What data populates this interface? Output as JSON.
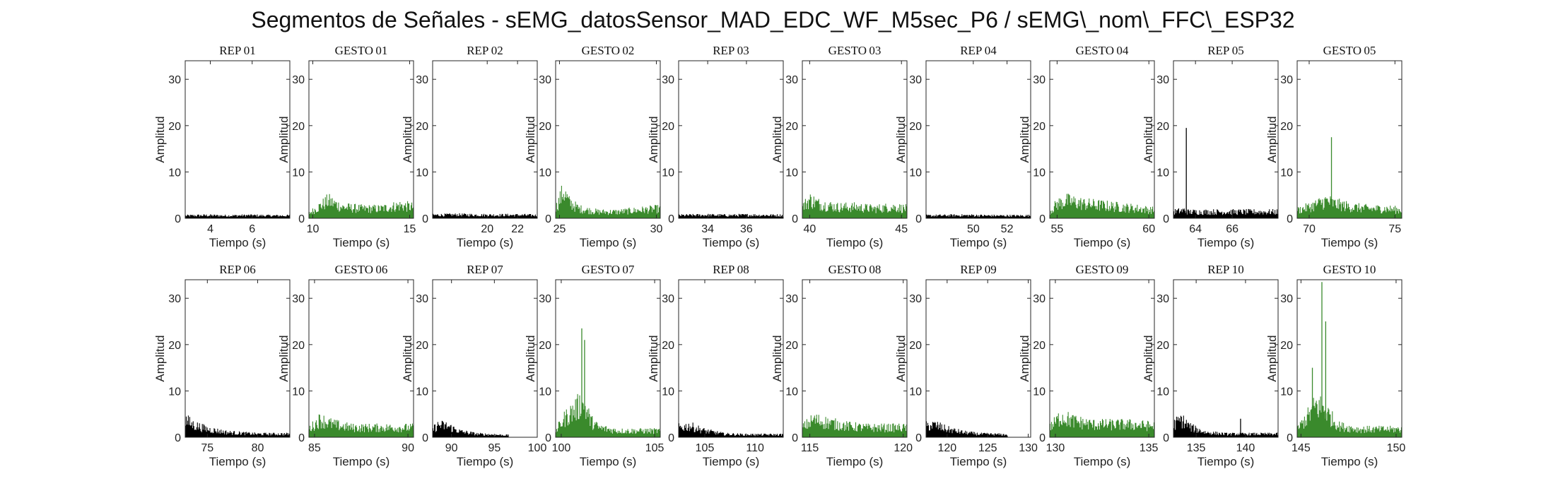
{
  "suptitle": "Segmentos de Señales - sEMG_datosSensor_MAD_EDC_WF_M5sec_P6 / sEMG\\_nom\\_FFC\\_ESP32",
  "colors": {
    "rep": "#000000",
    "gesto": "#3a8a2c"
  },
  "chart_data": [
    {
      "type": "area",
      "title": "REP_01",
      "color": "rep",
      "xlim": [
        2.8,
        7.8
      ],
      "ylim": [
        0,
        34
      ],
      "xticks": [
        4,
        6
      ],
      "yticks": [
        0,
        10,
        20,
        30
      ],
      "xlabel": "Tiempo (s)",
      "ylabel": "Amplitud",
      "x": [
        2.8,
        3.8,
        4.8,
        5.8,
        6.8,
        7.8
      ],
      "y": [
        0.8,
        0.9,
        0.8,
        0.9,
        0.8,
        0.8
      ]
    },
    {
      "type": "area",
      "title": "GESTO_01",
      "color": "gesto",
      "xlim": [
        9.8,
        15.2
      ],
      "ylim": [
        0,
        34
      ],
      "xticks": [
        10,
        15
      ],
      "yticks": [
        0,
        10,
        20,
        30
      ],
      "xlabel": "Tiempo (s)",
      "ylabel": "Amplitud",
      "x": [
        9.8,
        10.3,
        10.8,
        11.5,
        12.5,
        13.5,
        14.5,
        15.2
      ],
      "y": [
        1.5,
        3.5,
        5.5,
        3.5,
        3.0,
        3.0,
        4.0,
        3.5
      ]
    },
    {
      "type": "area",
      "title": "REP_02",
      "color": "rep",
      "xlim": [
        16.4,
        23.3
      ],
      "ylim": [
        0,
        34
      ],
      "xticks": [
        20,
        22
      ],
      "yticks": [
        0,
        10,
        20,
        30
      ],
      "xlabel": "Tiempo (s)",
      "ylabel": "Amplitud",
      "x": [
        16.4,
        18,
        20,
        22,
        23.3
      ],
      "y": [
        1.0,
        1.1,
        1.0,
        1.0,
        0.9
      ]
    },
    {
      "type": "area",
      "title": "GESTO_02",
      "color": "gesto",
      "xlim": [
        24.8,
        30.2
      ],
      "ylim": [
        0,
        34
      ],
      "xticks": [
        25,
        30
      ],
      "yticks": [
        0,
        10,
        20,
        30
      ],
      "xlabel": "Tiempo (s)",
      "ylabel": "Amplitud",
      "x": [
        24.8,
        25.2,
        25.5,
        26,
        27,
        28,
        29,
        30.2
      ],
      "y": [
        3.0,
        8.5,
        5.0,
        3.0,
        2.0,
        2.0,
        2.5,
        3.0
      ]
    },
    {
      "type": "area",
      "title": "REP_03",
      "color": "rep",
      "xlim": [
        32.5,
        37.9
      ],
      "ylim": [
        0,
        34
      ],
      "xticks": [
        34,
        36
      ],
      "yticks": [
        0,
        10,
        20,
        30
      ],
      "xlabel": "Tiempo (s)",
      "ylabel": "Amplitud",
      "x": [
        32.5,
        34,
        35,
        36,
        37.9
      ],
      "y": [
        0.9,
        1.0,
        0.9,
        1.0,
        0.9
      ]
    },
    {
      "type": "area",
      "title": "GESTO_03",
      "color": "gesto",
      "xlim": [
        39.6,
        45.3
      ],
      "ylim": [
        0,
        34
      ],
      "xticks": [
        40,
        45
      ],
      "yticks": [
        0,
        10,
        20,
        30
      ],
      "xlabel": "Tiempo (s)",
      "ylabel": "Amplitud",
      "x": [
        39.6,
        40,
        40.5,
        41.5,
        42.5,
        43.5,
        44.5,
        45.3
      ],
      "y": [
        3.5,
        5.8,
        4.5,
        3.5,
        3.5,
        3.0,
        3.5,
        3.0
      ]
    },
    {
      "type": "area",
      "title": "REP_04",
      "color": "rep",
      "xlim": [
        47.2,
        53.4
      ],
      "ylim": [
        0,
        34
      ],
      "xticks": [
        50,
        52
      ],
      "yticks": [
        0,
        10,
        20,
        30
      ],
      "xlabel": "Tiempo (s)",
      "ylabel": "Amplitud",
      "x": [
        47.2,
        49,
        50,
        51,
        53.4
      ],
      "y": [
        0.8,
        0.9,
        0.9,
        0.8,
        0.8
      ]
    },
    {
      "type": "area",
      "title": "GESTO_04",
      "color": "gesto",
      "xlim": [
        54.6,
        60.3
      ],
      "ylim": [
        0,
        34
      ],
      "xticks": [
        55,
        60
      ],
      "yticks": [
        0,
        10,
        20,
        30
      ],
      "xlabel": "Tiempo (s)",
      "ylabel": "Amplitud",
      "x": [
        54.6,
        55,
        55.5,
        56.5,
        57.5,
        58.5,
        59.5,
        60.3
      ],
      "y": [
        2.0,
        4.5,
        5.5,
        4.5,
        4.0,
        3.5,
        3.0,
        2.5
      ]
    },
    {
      "type": "area",
      "title": "REP_05",
      "color": "rep",
      "xlim": [
        62.8,
        68.5
      ],
      "ylim": [
        0,
        34
      ],
      "xticks": [
        64,
        66
      ],
      "yticks": [
        0,
        10,
        20,
        30
      ],
      "xlabel": "Tiempo (s)",
      "ylabel": "Amplitud",
      "x": [
        62.8,
        63.4,
        63.6,
        64.5,
        66,
        68.5
      ],
      "y": [
        2.0,
        2.5,
        2.0,
        2.0,
        2.0,
        2.0
      ],
      "spikes": [
        [
          63.5,
          19.5
        ]
      ]
    },
    {
      "type": "area",
      "title": "GESTO_05",
      "color": "gesto",
      "xlim": [
        69.3,
        75.4
      ],
      "ylim": [
        0,
        34
      ],
      "xticks": [
        70,
        75
      ],
      "yticks": [
        0,
        10,
        20,
        30
      ],
      "xlabel": "Tiempo (s)",
      "ylabel": "Amplitud",
      "x": [
        69.3,
        70,
        71,
        71.5,
        72.5,
        73.5,
        74.5,
        75.4
      ],
      "y": [
        2.5,
        3.5,
        5.5,
        4.5,
        3.5,
        3.0,
        3.0,
        2.5
      ],
      "spikes": [
        [
          71.3,
          17.5
        ]
      ]
    },
    {
      "type": "area",
      "title": "REP_06",
      "color": "rep",
      "xlim": [
        72.8,
        83.2
      ],
      "ylim": [
        0,
        34
      ],
      "xticks": [
        75,
        80
      ],
      "yticks": [
        0,
        10,
        20,
        30
      ],
      "xlabel": "Tiempo (s)",
      "ylabel": "Amplitud",
      "x": [
        72.8,
        73.5,
        75,
        77,
        80,
        83.2
      ],
      "y": [
        5.5,
        4.0,
        2.5,
        1.5,
        1.0,
        1.0
      ]
    },
    {
      "type": "area",
      "title": "GESTO_06",
      "color": "gesto",
      "xlim": [
        84.7,
        90.3
      ],
      "ylim": [
        0,
        34
      ],
      "xticks": [
        85,
        90
      ],
      "yticks": [
        0,
        10,
        20,
        30
      ],
      "xlabel": "Tiempo (s)",
      "ylabel": "Amplitud",
      "x": [
        84.7,
        85.3,
        86,
        87,
        88,
        89,
        90.3
      ],
      "y": [
        2.5,
        5.5,
        4.0,
        3.0,
        3.0,
        3.0,
        3.0
      ]
    },
    {
      "type": "area",
      "title": "REP_07",
      "color": "rep",
      "xlim": [
        87.8,
        100
      ],
      "ylim": [
        0,
        34
      ],
      "xticks": [
        90,
        95,
        100
      ],
      "yticks": [
        0,
        10,
        20,
        30
      ],
      "xlabel": "Tiempo (s)",
      "ylabel": "Amplitud",
      "x": [
        87.8,
        88.5,
        89.5,
        91,
        93,
        96.7
      ],
      "y": [
        2.5,
        3.8,
        3.5,
        1.8,
        1.0,
        0.6
      ]
    },
    {
      "type": "area",
      "title": "GESTO_07",
      "color": "gesto",
      "xlim": [
        99.7,
        105.3
      ],
      "ylim": [
        0,
        34
      ],
      "xticks": [
        100,
        105
      ],
      "yticks": [
        0,
        10,
        20,
        30
      ],
      "xlabel": "Tiempo (s)",
      "ylabel": "Amplitud",
      "x": [
        99.7,
        100.2,
        100.7,
        101,
        101.3,
        101.6,
        102,
        103,
        104,
        105.3
      ],
      "y": [
        2.0,
        6.0,
        8.5,
        10.0,
        9.0,
        5.0,
        3.0,
        2.0,
        2.0,
        2.0
      ],
      "spikes": [
        [
          101.1,
          23.5
        ],
        [
          101.25,
          21.0
        ]
      ]
    },
    {
      "type": "area",
      "title": "REP_08",
      "color": "rep",
      "xlim": [
        102.4,
        112.8
      ],
      "ylim": [
        0,
        34
      ],
      "xticks": [
        105,
        110
      ],
      "yticks": [
        0,
        10,
        20,
        30
      ],
      "xlabel": "Tiempo (s)",
      "ylabel": "Amplitud",
      "x": [
        102.4,
        103.5,
        105,
        107,
        109,
        112.8
      ],
      "y": [
        3.0,
        3.5,
        2.0,
        1.0,
        0.8,
        0.8
      ]
    },
    {
      "type": "area",
      "title": "GESTO_08",
      "color": "gesto",
      "xlim": [
        114.6,
        120.2
      ],
      "ylim": [
        0,
        34
      ],
      "xticks": [
        115,
        120
      ],
      "yticks": [
        0,
        10,
        20,
        30
      ],
      "xlabel": "Tiempo (s)",
      "ylabel": "Amplitud",
      "x": [
        114.6,
        115.2,
        116,
        117,
        118,
        119,
        120.2
      ],
      "y": [
        3.0,
        5.5,
        4.5,
        3.5,
        3.0,
        3.0,
        3.0
      ]
    },
    {
      "type": "area",
      "title": "REP_09",
      "color": "rep",
      "xlim": [
        117.4,
        130.3
      ],
      "ylim": [
        0,
        34
      ],
      "xticks": [
        120,
        125,
        130
      ],
      "yticks": [
        0,
        10,
        20,
        30
      ],
      "xlabel": "Tiempo (s)",
      "ylabel": "Amplitud",
      "x": [
        117.4,
        118.5,
        120,
        122,
        124,
        127.5
      ],
      "y": [
        3.5,
        3.8,
        2.5,
        1.5,
        1.0,
        0.8
      ]
    },
    {
      "type": "area",
      "title": "GESTO_09",
      "color": "gesto",
      "xlim": [
        129.7,
        135.3
      ],
      "ylim": [
        0,
        34
      ],
      "xticks": [
        130,
        135
      ],
      "yticks": [
        0,
        10,
        20,
        30
      ],
      "xlabel": "Tiempo (s)",
      "ylabel": "Amplitud",
      "x": [
        129.7,
        130.3,
        131,
        132,
        133,
        134,
        135.3
      ],
      "y": [
        3.0,
        6.5,
        5.0,
        4.0,
        4.0,
        4.0,
        3.5
      ]
    },
    {
      "type": "area",
      "title": "REP_10",
      "color": "rep",
      "xlim": [
        132.7,
        143.3
      ],
      "ylim": [
        0,
        34
      ],
      "xticks": [
        135,
        140
      ],
      "yticks": [
        0,
        10,
        20,
        30
      ],
      "xlabel": "Tiempo (s)",
      "ylabel": "Amplitud",
      "x": [
        132.7,
        133.5,
        134.5,
        136,
        138,
        140,
        143.3
      ],
      "y": [
        4.0,
        5.5,
        3.0,
        1.5,
        1.0,
        1.0,
        1.0
      ],
      "spikes": [
        [
          139.5,
          4.0
        ]
      ]
    },
    {
      "type": "area",
      "title": "GESTO_10",
      "color": "gesto",
      "xlim": [
        144.8,
        150.3
      ],
      "ylim": [
        0,
        34
      ],
      "xticks": [
        145,
        150
      ],
      "yticks": [
        0,
        10,
        20,
        30
      ],
      "xlabel": "Tiempo (s)",
      "ylabel": "Amplitud",
      "x": [
        144.8,
        145.3,
        145.8,
        146.2,
        146.6,
        147,
        148,
        149,
        150.3
      ],
      "y": [
        2.5,
        6.0,
        10.0,
        9.0,
        6.0,
        3.5,
        2.5,
        2.5,
        2.5
      ],
      "spikes": [
        [
          146.1,
          33.5
        ],
        [
          146.3,
          25.0
        ],
        [
          145.6,
          15.0
        ]
      ]
    }
  ]
}
